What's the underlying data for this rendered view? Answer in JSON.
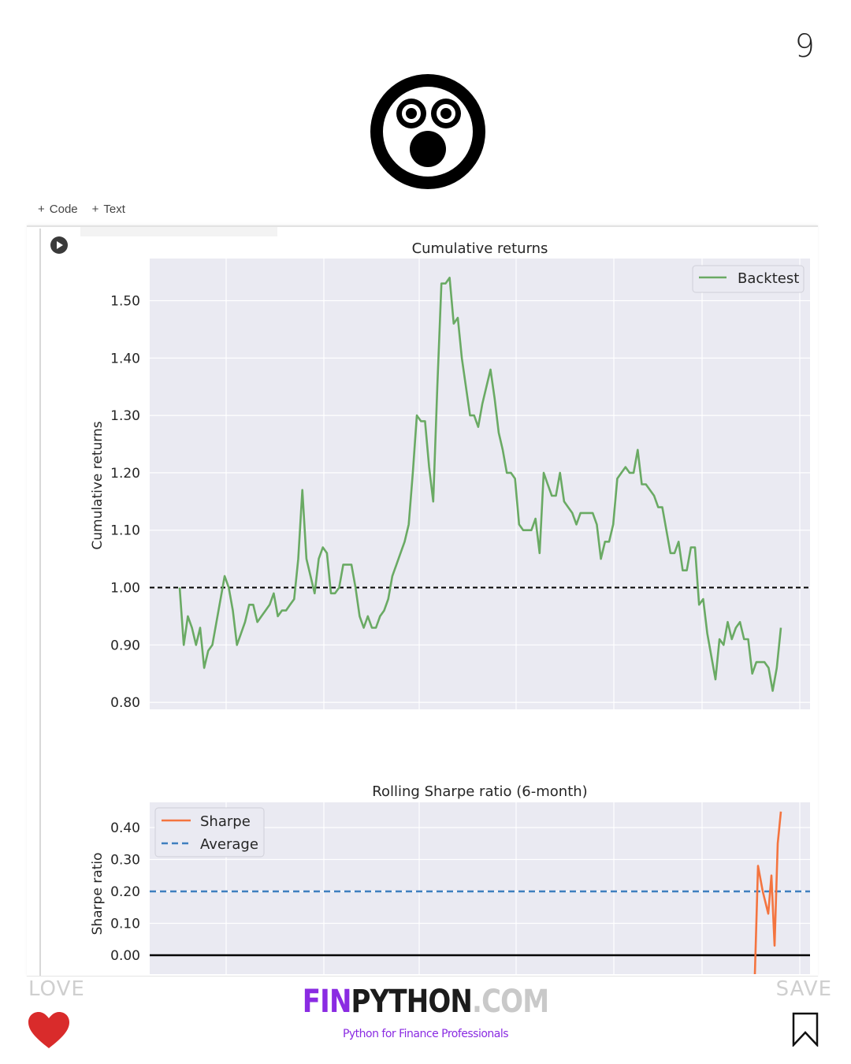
{
  "page": {
    "number": "9"
  },
  "toolbar": {
    "code_label": "Code",
    "text_label": "Text",
    "plus": "+"
  },
  "footer": {
    "love_label": "LOVE",
    "save_label": "SAVE",
    "brand_part1": "FIN",
    "brand_part2": "PYTHON",
    "brand_part3": ".COM",
    "tagline": "Python for Finance Professionals"
  },
  "colors": {
    "backtest": "#6aaa64",
    "sharpe": "#f4743f",
    "average": "#3f7fbf",
    "axes_bg": "#eaeaf2",
    "brand_purple": "#8a2be2",
    "heart": "#d92b2b"
  },
  "icons": {
    "logo": "surprised-face-icon",
    "run": "play-icon",
    "love": "heart-icon",
    "save": "bookmark-icon"
  },
  "chart_data": [
    {
      "type": "line",
      "title": "Cumulative returns",
      "ylabel": "Cumulative returns",
      "xlabel": "",
      "ylim": [
        0.78,
        1.6
      ],
      "yticks": [
        0.8,
        0.9,
        1.0,
        1.1,
        1.2,
        1.3,
        1.4,
        1.5
      ],
      "ytick_labels": [
        "0.80",
        "0.90",
        "1.00",
        "1.10",
        "1.20",
        "1.30",
        "1.40",
        "1.50"
      ],
      "grid": true,
      "legend": "top-right",
      "reference_line": {
        "y": 1.0,
        "style": "dashed",
        "color": "#000000"
      },
      "series": [
        {
          "name": "Backtest",
          "values": [
            1.0,
            0.9,
            0.95,
            0.93,
            0.9,
            0.93,
            0.86,
            0.89,
            0.9,
            0.94,
            0.98,
            1.02,
            1.0,
            0.96,
            0.9,
            0.92,
            0.94,
            0.97,
            0.97,
            0.94,
            0.95,
            0.96,
            0.97,
            0.99,
            0.95,
            0.96,
            0.96,
            0.97,
            0.98,
            1.05,
            1.17,
            1.05,
            1.02,
            0.99,
            1.05,
            1.07,
            1.06,
            0.99,
            0.99,
            1.0,
            1.04,
            1.04,
            1.04,
            1.0,
            0.95,
            0.93,
            0.95,
            0.93,
            0.93,
            0.95,
            0.96,
            0.98,
            1.02,
            1.04,
            1.06,
            1.08,
            1.11,
            1.2,
            1.3,
            1.29,
            1.29,
            1.21,
            1.15,
            1.35,
            1.53,
            1.53,
            1.54,
            1.46,
            1.47,
            1.4,
            1.35,
            1.3,
            1.3,
            1.28,
            1.32,
            1.35,
            1.38,
            1.33,
            1.27,
            1.24,
            1.2,
            1.2,
            1.19,
            1.11,
            1.1,
            1.1,
            1.1,
            1.12,
            1.06,
            1.2,
            1.18,
            1.16,
            1.16,
            1.2,
            1.15,
            1.14,
            1.13,
            1.11,
            1.13,
            1.13,
            1.13,
            1.13,
            1.11,
            1.05,
            1.08,
            1.08,
            1.11,
            1.19,
            1.2,
            1.21,
            1.2,
            1.2,
            1.24,
            1.18,
            1.18,
            1.17,
            1.16,
            1.14,
            1.14,
            1.1,
            1.06,
            1.06,
            1.08,
            1.03,
            1.03,
            1.07,
            1.07,
            0.97,
            0.98,
            0.92,
            0.88,
            0.84,
            0.91,
            0.9,
            0.94,
            0.91,
            0.93,
            0.94,
            0.91,
            0.91,
            0.85,
            0.87,
            0.87,
            0.87,
            0.86,
            0.82,
            0.86,
            0.93
          ]
        }
      ]
    },
    {
      "type": "line",
      "title": "Rolling Sharpe ratio (6-month)",
      "ylabel": "Sharpe ratio",
      "xlabel": "",
      "ylim": [
        -0.06,
        0.48
      ],
      "yticks": [
        0.0,
        0.1,
        0.2,
        0.3,
        0.4
      ],
      "ytick_labels": [
        "0.00",
        "0.10",
        "0.20",
        "0.30",
        "0.40"
      ],
      "grid": true,
      "legend": "top-left",
      "reference_line": {
        "y": 0.0,
        "style": "solid",
        "color": "#000000"
      },
      "series": [
        {
          "name": "Sharpe",
          "values": [
            -0.06,
            0.28,
            0.2,
            0.13,
            0.25,
            0.03,
            0.35,
            0.45
          ]
        },
        {
          "name": "Average",
          "values": [
            0.2
          ],
          "style": "dashed"
        }
      ]
    }
  ]
}
